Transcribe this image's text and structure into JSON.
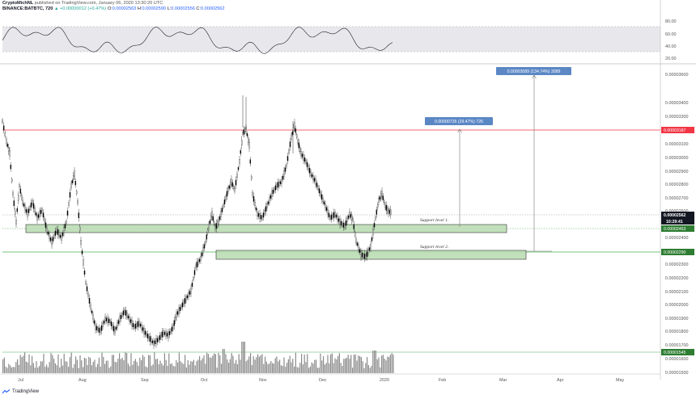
{
  "header": {
    "author": "CryptoMichNL",
    "published": "published on TradingView.com, January 06, 2020 13:30:20 UTC",
    "symbol": "BINANCE:BATBTC, 720",
    "change": "▲ +0.00000012 (+0.47%)",
    "o_label": "O:",
    "o": "0.00002563",
    "h_label": "H:",
    "h": "0.00002590",
    "l_label": "L:",
    "l": "0.00002556",
    "c_label": "C:",
    "c": "0.00002562"
  },
  "rsi_axis": [
    "80.00",
    "60.00",
    "40.00",
    "20.00"
  ],
  "price_axis": [
    "0.00003600",
    "0.00003400",
    "0.00003300",
    "0.00003200",
    "0.00003100",
    "0.00003000",
    "0.00002900",
    "0.00002800",
    "0.00002700",
    "0.00002600",
    "0.00002400",
    "0.00002300",
    "0.00002200",
    "0.00002100",
    "0.00002000",
    "0.00001900",
    "0.00001800",
    "0.00001700",
    "0.00001600",
    "0.00001500",
    "0.00001400"
  ],
  "price_tags": {
    "resistance": "0.00003187",
    "current": "0.00002562",
    "countdown": "10:29:41",
    "support1": "0.00002463",
    "support2": "0.00002290",
    "low": "0.00001545"
  },
  "time_axis": [
    "Jul",
    "Aug",
    "Sep",
    "Oct",
    "Nov",
    "Dec",
    "2020",
    "Feb",
    "Mar",
    "Apr",
    "May"
  ],
  "annotations": {
    "target1": "0.00000726 (29.47%) 726",
    "target2": "0.00003089 (134.74%) 3089",
    "support1": "Support level 1.",
    "support2": "Support level 2."
  },
  "footer": {
    "brand": "TradingView"
  },
  "colors": {
    "resistance": "#f23645",
    "support_fill": "#b7dbb0",
    "support_border": "#333333",
    "support_line": "#4caf50",
    "annot_bg": "#5b87c5",
    "candle": "#000000",
    "dark_tag": "#131722"
  }
}
